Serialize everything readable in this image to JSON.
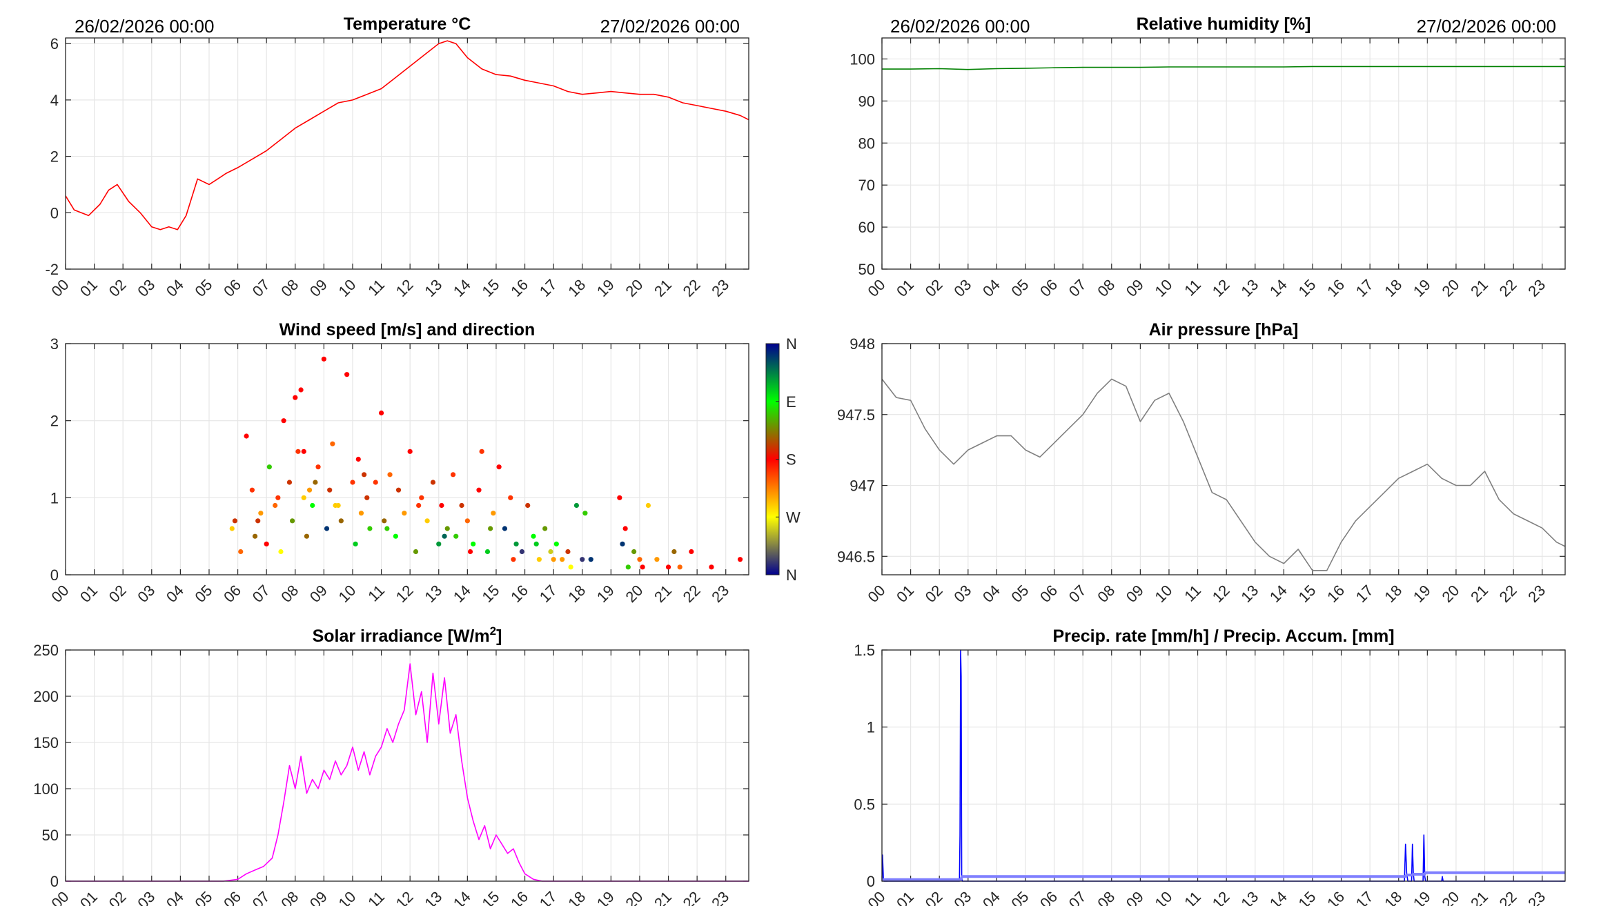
{
  "header": {
    "left_date_1": "26/02/2026 00:00",
    "right_date_1": "27/02/2026 00:00",
    "left_date_2": "26/02/2026 00:00",
    "right_date_2": "27/02/2026 00:00"
  },
  "hour_labels": [
    "00",
    "01",
    "02",
    "03",
    "04",
    "05",
    "06",
    "07",
    "08",
    "09",
    "10",
    "11",
    "12",
    "13",
    "14",
    "15",
    "16",
    "17",
    "18",
    "19",
    "20",
    "21",
    "22",
    "23"
  ],
  "colorbar_labels": [
    "N",
    "W",
    "S",
    "E",
    "N"
  ],
  "chart_data": [
    {
      "id": "temperature",
      "type": "line",
      "title": "Temperature °C",
      "color": "#ff0000",
      "xlabel": "",
      "ylabel": "",
      "xlim": [
        0,
        23.8
      ],
      "ylim": [
        -2,
        6.2
      ],
      "yticks": [
        -2,
        0,
        2,
        4,
        6
      ],
      "ytick_labels": [
        "-2",
        "0",
        "2",
        "4",
        "6"
      ],
      "x": [
        0,
        0.3,
        0.8,
        1.2,
        1.5,
        1.8,
        2.2,
        2.6,
        3.0,
        3.3,
        3.6,
        3.9,
        4.2,
        4.6,
        5.0,
        5.3,
        5.6,
        6.0,
        6.5,
        7.0,
        7.5,
        8.0,
        8.5,
        9.0,
        9.5,
        10.0,
        10.5,
        11.0,
        11.5,
        12.0,
        12.5,
        13.0,
        13.3,
        13.6,
        14.0,
        14.5,
        15.0,
        15.5,
        16.0,
        16.5,
        17.0,
        17.5,
        18.0,
        18.5,
        19.0,
        19.5,
        20.0,
        20.5,
        21.0,
        21.5,
        22.0,
        22.5,
        23.0,
        23.5,
        23.8
      ],
      "values": [
        0.6,
        0.1,
        -0.1,
        0.3,
        0.8,
        1.0,
        0.4,
        0.0,
        -0.5,
        -0.6,
        -0.5,
        -0.6,
        -0.1,
        1.2,
        1.0,
        1.2,
        1.4,
        1.6,
        1.9,
        2.2,
        2.6,
        3.0,
        3.3,
        3.6,
        3.9,
        4.0,
        4.2,
        4.4,
        4.8,
        5.2,
        5.6,
        6.0,
        6.1,
        6.0,
        5.5,
        5.1,
        4.9,
        4.85,
        4.7,
        4.6,
        4.5,
        4.3,
        4.2,
        4.25,
        4.3,
        4.25,
        4.2,
        4.2,
        4.1,
        3.9,
        3.8,
        3.7,
        3.6,
        3.45,
        3.3
      ]
    },
    {
      "id": "humidity",
      "type": "line",
      "title": "Relative humidity [%]",
      "color": "#008000",
      "xlim": [
        0,
        23.8
      ],
      "ylim": [
        50,
        105
      ],
      "yticks": [
        50,
        60,
        70,
        80,
        90,
        100
      ],
      "ytick_labels": [
        "50",
        "60",
        "70",
        "80",
        "90",
        "100"
      ],
      "x": [
        0,
        1,
        2,
        3,
        4,
        5,
        6,
        7,
        8,
        9,
        10,
        11,
        12,
        13,
        14,
        15,
        16,
        17,
        18,
        19,
        20,
        21,
        22,
        23,
        23.8
      ],
      "values": [
        97.6,
        97.6,
        97.7,
        97.5,
        97.7,
        97.8,
        97.9,
        98.0,
        98.0,
        98.0,
        98.1,
        98.1,
        98.1,
        98.1,
        98.1,
        98.2,
        98.2,
        98.2,
        98.2,
        98.2,
        98.2,
        98.2,
        98.2,
        98.2,
        98.2
      ]
    },
    {
      "id": "wind",
      "type": "scatter",
      "title": "Wind speed [m/s] and direction",
      "xlim": [
        0,
        23.8
      ],
      "ylim": [
        0,
        3
      ],
      "yticks": [
        0,
        1,
        2,
        3
      ],
      "ytick_labels": [
        "0",
        "1",
        "2",
        "3"
      ],
      "color_scale": [
        "#00008f",
        "#ffff00",
        "#ff0000",
        "#00ff00",
        "#00008f"
      ],
      "x": [
        5.8,
        5.9,
        6.3,
        6.5,
        6.6,
        6.8,
        7.0,
        7.1,
        7.3,
        7.5,
        7.6,
        7.8,
        7.9,
        8.0,
        8.1,
        8.2,
        8.3,
        8.4,
        8.5,
        8.6,
        8.8,
        9.0,
        9.1,
        9.2,
        9.3,
        9.4,
        9.6,
        9.8,
        10.0,
        10.1,
        10.2,
        10.3,
        10.5,
        10.6,
        10.8,
        11.0,
        11.1,
        11.3,
        11.5,
        11.6,
        11.8,
        12.0,
        12.2,
        12.4,
        12.6,
        12.8,
        13.0,
        13.1,
        13.3,
        13.5,
        13.6,
        13.8,
        14.0,
        14.2,
        14.4,
        14.5,
        14.7,
        14.9,
        15.1,
        15.3,
        15.5,
        15.7,
        15.9,
        16.1,
        16.3,
        16.5,
        16.7,
        16.9,
        17.1,
        17.3,
        17.5,
        17.8,
        18.0,
        18.1,
        19.3,
        19.4,
        19.5,
        19.8,
        20.1,
        20.3,
        20.6,
        21.2,
        21.4,
        21.8,
        22.5,
        23.5,
        6.1,
        6.7,
        7.4,
        8.3,
        8.7,
        9.5,
        10.4,
        11.2,
        12.3,
        13.2,
        14.1,
        14.8,
        15.6,
        16.4,
        17.0,
        17.6,
        18.3,
        19.6,
        20.0,
        21.0
      ],
      "values": [
        0.6,
        0.7,
        1.8,
        1.1,
        0.5,
        0.8,
        0.4,
        1.4,
        0.9,
        0.3,
        2.0,
        1.2,
        0.7,
        2.3,
        1.6,
        2.4,
        1.0,
        0.5,
        1.1,
        0.9,
        1.4,
        2.8,
        0.6,
        1.1,
        1.7,
        0.9,
        0.7,
        2.6,
        1.2,
        0.4,
        1.5,
        0.8,
        1.0,
        0.6,
        1.2,
        2.1,
        0.7,
        1.3,
        0.5,
        1.1,
        0.8,
        1.6,
        0.3,
        1.0,
        0.7,
        1.2,
        0.4,
        0.9,
        0.6,
        1.3,
        0.5,
        0.9,
        0.7,
        0.4,
        1.1,
        1.6,
        0.3,
        0.8,
        1.4,
        0.6,
        1.0,
        0.4,
        0.3,
        0.9,
        0.5,
        0.2,
        0.6,
        0.3,
        0.4,
        0.2,
        0.3,
        0.9,
        0.2,
        0.8,
        1.0,
        0.4,
        0.6,
        0.3,
        0.1,
        0.9,
        0.2,
        0.3,
        0.1,
        0.3,
        0.1,
        0.2,
        0.3,
        0.7,
        1.0,
        1.6,
        1.2,
        0.9,
        1.3,
        0.6,
        0.9,
        0.5,
        0.3,
        0.6,
        0.2,
        0.4,
        0.2,
        0.1,
        0.2,
        0.1,
        0.2,
        0.1
      ],
      "direction": [
        0.3,
        0.55,
        0.5,
        0.45,
        0.6,
        0.35,
        0.5,
        0.7,
        0.4,
        0.25,
        0.5,
        0.55,
        0.65,
        0.5,
        0.45,
        0.5,
        0.3,
        0.6,
        0.35,
        0.75,
        0.45,
        0.5,
        0.95,
        0.55,
        0.4,
        0.3,
        0.6,
        0.5,
        0.45,
        0.8,
        0.5,
        0.35,
        0.55,
        0.7,
        0.45,
        0.5,
        0.6,
        0.4,
        0.75,
        0.55,
        0.35,
        0.5,
        0.65,
        0.45,
        0.3,
        0.55,
        0.85,
        0.5,
        0.65,
        0.45,
        0.7,
        0.55,
        0.4,
        0.75,
        0.5,
        0.45,
        0.8,
        0.35,
        0.5,
        0.95,
        0.45,
        0.85,
        0.05,
        0.55,
        0.75,
        0.3,
        0.65,
        0.2,
        0.75,
        0.35,
        0.55,
        0.85,
        0.05,
        0.7,
        0.5,
        0.95,
        0.5,
        0.65,
        0.5,
        0.3,
        0.35,
        0.6,
        0.4,
        0.5,
        0.5,
        0.5,
        0.4,
        0.55,
        0.45,
        0.5,
        0.6,
        0.3,
        0.55,
        0.7,
        0.45,
        0.9,
        0.5,
        0.65,
        0.45,
        0.8,
        0.35,
        0.25,
        0.95,
        0.7,
        0.4,
        0.5
      ]
    },
    {
      "id": "pressure",
      "type": "line",
      "title": "Air pressure [hPa]",
      "color": "#808080",
      "xlim": [
        0,
        23.8
      ],
      "ylim": [
        946.37,
        948
      ],
      "yticks": [
        946.5,
        947,
        947.5,
        948
      ],
      "ytick_labels": [
        "946.5",
        "947",
        "947.5",
        "948"
      ],
      "x": [
        0,
        0.5,
        1.0,
        1.5,
        2.0,
        2.5,
        3.0,
        3.5,
        4.0,
        4.5,
        5.0,
        5.5,
        6.0,
        6.5,
        7.0,
        7.5,
        8.0,
        8.5,
        9.0,
        9.5,
        10.0,
        10.5,
        11.0,
        11.5,
        12.0,
        12.5,
        13.0,
        13.5,
        14.0,
        14.5,
        15.0,
        15.5,
        16.0,
        16.5,
        17.0,
        17.5,
        18.0,
        18.5,
        19.0,
        19.5,
        20.0,
        20.5,
        21.0,
        21.5,
        22.0,
        22.5,
        23.0,
        23.5,
        23.8
      ],
      "values": [
        947.75,
        947.62,
        947.6,
        947.4,
        947.25,
        947.15,
        947.25,
        947.3,
        947.35,
        947.35,
        947.25,
        947.2,
        947.3,
        947.4,
        947.5,
        947.65,
        947.75,
        947.7,
        947.45,
        947.6,
        947.65,
        947.45,
        947.2,
        946.95,
        946.9,
        946.75,
        946.6,
        946.5,
        946.45,
        946.55,
        946.4,
        946.4,
        946.6,
        946.75,
        946.85,
        946.95,
        947.05,
        947.1,
        947.15,
        947.05,
        947.0,
        947.0,
        947.1,
        946.9,
        946.8,
        946.75,
        946.7,
        946.6,
        946.57
      ]
    },
    {
      "id": "solar",
      "type": "line",
      "title": "Solar irradiance [W/m2]",
      "title_main": "Solar irradiance [W/m",
      "title_sup": "2",
      "title_end": "]",
      "color": "#ff00ff",
      "xlim": [
        0,
        23.8
      ],
      "ylim": [
        0,
        250
      ],
      "yticks": [
        0,
        50,
        100,
        150,
        200,
        250
      ],
      "ytick_labels": [
        "0",
        "50",
        "100",
        "150",
        "200",
        "250"
      ],
      "x": [
        0,
        5.5,
        6.0,
        6.3,
        6.6,
        6.9,
        7.2,
        7.4,
        7.6,
        7.8,
        8.0,
        8.2,
        8.4,
        8.6,
        8.8,
        9.0,
        9.2,
        9.4,
        9.6,
        9.8,
        10.0,
        10.2,
        10.4,
        10.6,
        10.8,
        11.0,
        11.2,
        11.4,
        11.6,
        11.8,
        12.0,
        12.2,
        12.4,
        12.6,
        12.8,
        13.0,
        13.2,
        13.4,
        13.6,
        13.8,
        14.0,
        14.2,
        14.4,
        14.6,
        14.8,
        15.0,
        15.2,
        15.4,
        15.6,
        15.8,
        16.0,
        16.3,
        16.6,
        23.8
      ],
      "values": [
        0,
        0,
        2,
        8,
        12,
        16,
        25,
        50,
        85,
        125,
        100,
        135,
        95,
        110,
        100,
        120,
        110,
        130,
        115,
        125,
        145,
        120,
        140,
        115,
        135,
        145,
        165,
        150,
        170,
        185,
        235,
        180,
        205,
        150,
        225,
        170,
        220,
        160,
        180,
        130,
        90,
        65,
        45,
        60,
        35,
        50,
        40,
        30,
        35,
        20,
        8,
        2,
        0,
        0
      ]
    },
    {
      "id": "precip",
      "type": "line",
      "title": "Precip. rate [mm/h] / Precip. Accum. [mm]",
      "colors": [
        "#0000ff",
        "#7f7fff"
      ],
      "xlim": [
        0,
        23.8
      ],
      "ylim": [
        0,
        1.5
      ],
      "yticks": [
        0,
        0.5,
        1,
        1.5
      ],
      "ytick_labels": [
        "0",
        "0.5",
        "1",
        "1.5"
      ],
      "series": [
        {
          "name": "Precip. rate [mm/h]",
          "x": [
            0,
            0.02,
            0.05,
            0.08,
            2.7,
            2.72,
            2.74,
            2.76,
            2.78,
            2.8,
            18.2,
            18.24,
            18.28,
            18.32,
            18.45,
            18.48,
            18.51,
            18.54,
            18.85,
            18.88,
            18.91,
            18.94,
            19.5,
            19.52,
            19.55,
            23.8
          ],
          "values": [
            0,
            0.17,
            0.02,
            0,
            0,
            0.3,
            1.5,
            1.33,
            0.02,
            0,
            0,
            0.24,
            0.05,
            0,
            0,
            0.24,
            0.05,
            0,
            0,
            0.3,
            0.03,
            0,
            0,
            0.03,
            0,
            0
          ]
        },
        {
          "name": "Precip. Accum. [mm]",
          "x": [
            0,
            0.05,
            2.74,
            2.8,
            18.22,
            18.3,
            18.48,
            18.52,
            18.9,
            18.95,
            23.8
          ],
          "values": [
            0.005,
            0.01,
            0.01,
            0.03,
            0.03,
            0.04,
            0.04,
            0.045,
            0.045,
            0.055,
            0.055
          ]
        }
      ]
    }
  ]
}
